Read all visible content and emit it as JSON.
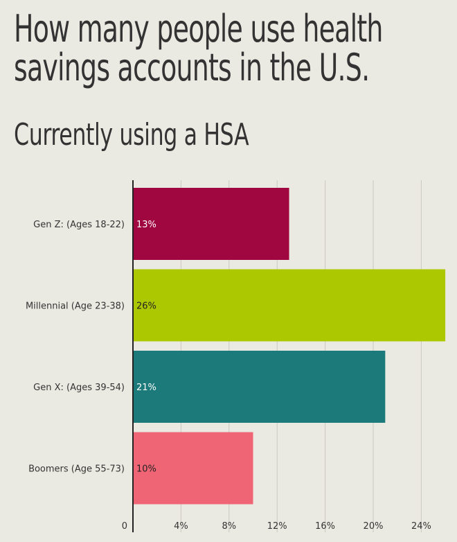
{
  "title": "How many people use health savings accounts in the U.S.",
  "subtitle": "Currently using a HSA",
  "chart_data": {
    "type": "bar",
    "orientation": "horizontal",
    "categories": [
      "Gen Z: (Ages 18-22)",
      "Millennial (Age 23-38)",
      "Gen X: (Ages 39-54)",
      "Boomers (Age 55-73)"
    ],
    "values": [
      13,
      26,
      21,
      10
    ],
    "value_labels": [
      "13%",
      "26%",
      "21%",
      "10%"
    ],
    "colors": [
      "#a0063f",
      "#acc800",
      "#1c7a7a",
      "#ef6575"
    ],
    "label_colors": [
      "#ffffff",
      "#222222",
      "#ffffff",
      "#222222"
    ],
    "xlim": [
      0,
      26
    ],
    "xticks": [
      0,
      4,
      8,
      12,
      16,
      20,
      24
    ],
    "xtick_labels": [
      "0",
      "4%",
      "8%",
      "12%",
      "16%",
      "20%",
      "24%"
    ],
    "grid": true
  }
}
